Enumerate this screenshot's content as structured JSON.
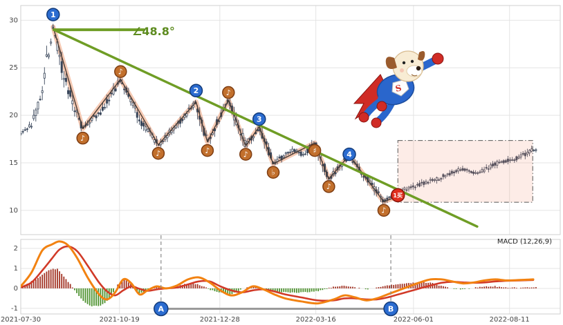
{
  "chart_data": {
    "type": "candlestick",
    "x_axis": {
      "tick_labels": [
        "2021-07-30",
        "2021-10-19",
        "2021-12-28",
        "2022-03-16",
        "2022-06-01",
        "2022-08-11"
      ],
      "tick_t": [
        0.0,
        0.183,
        0.369,
        0.547,
        0.728,
        0.906
      ]
    },
    "price_panel": {
      "ylim": [
        7.45,
        31.55
      ],
      "yticks": [
        10,
        15,
        20,
        25,
        30
      ]
    },
    "t_end": 0.955,
    "candle_count": 240,
    "candle_color_up": "#ffffff",
    "candle_color_down": "#39465a",
    "candle_stroke": "#39465a",
    "base_pivots": [
      [
        0.0,
        18.2
      ],
      [
        0.018,
        18.8
      ],
      [
        0.035,
        21.5
      ],
      [
        0.06,
        29.3
      ],
      [
        0.08,
        24.0
      ],
      [
        0.115,
        18.6
      ],
      [
        0.15,
        20.5
      ],
      [
        0.185,
        23.8
      ],
      [
        0.22,
        19.5
      ],
      [
        0.255,
        16.9
      ],
      [
        0.29,
        19.0
      ],
      [
        0.325,
        21.4
      ],
      [
        0.346,
        17.2
      ],
      [
        0.385,
        21.6
      ],
      [
        0.417,
        16.8
      ],
      [
        0.442,
        18.8
      ],
      [
        0.468,
        14.9
      ],
      [
        0.505,
        16.4
      ],
      [
        0.525,
        15.8
      ],
      [
        0.545,
        17.1
      ],
      [
        0.571,
        13.3
      ],
      [
        0.609,
        15.8
      ],
      [
        0.64,
        13.5
      ],
      [
        0.673,
        10.9
      ],
      [
        0.699,
        12.0
      ],
      [
        0.735,
        12.6
      ],
      [
        0.775,
        13.4
      ],
      [
        0.815,
        14.3
      ],
      [
        0.848,
        13.9
      ],
      [
        0.885,
        15.0
      ],
      [
        0.92,
        15.5
      ],
      [
        0.955,
        16.5
      ]
    ],
    "zigzag": [
      [
        0.06,
        29.3
      ],
      [
        0.115,
        18.6
      ],
      [
        0.185,
        23.8
      ],
      [
        0.255,
        16.9
      ],
      [
        0.325,
        21.4
      ],
      [
        0.346,
        17.2
      ],
      [
        0.385,
        21.6
      ],
      [
        0.417,
        16.8
      ],
      [
        0.442,
        18.8
      ],
      [
        0.468,
        14.9
      ],
      [
        0.545,
        17.1
      ],
      [
        0.571,
        13.3
      ],
      [
        0.609,
        15.8
      ],
      [
        0.673,
        10.9
      ],
      [
        0.699,
        11.5
      ]
    ],
    "zigzag_band_color": "#f4c3ab",
    "zigzag_line_color": "#4a3b32",
    "trendline": {
      "x1": 0.0615,
      "y1": 29.0,
      "x2": 0.846,
      "y2": 8.3,
      "horizontal_end_t": 0.228,
      "color": "#6f9d25",
      "angle_label": "∠48.8°"
    },
    "highlight_box": {
      "t1": 0.699,
      "t2": 0.949,
      "p_top": 17.35,
      "p_bottom": 10.85,
      "fill": "rgba(246,150,120,0.18)",
      "border": "#555555"
    },
    "markers": {
      "numbered": [
        {
          "label": "1",
          "t": 0.06,
          "p": 30.6
        },
        {
          "label": "2",
          "t": 0.325,
          "p": 22.6
        },
        {
          "label": "3",
          "t": 0.442,
          "p": 19.6
        },
        {
          "label": "4",
          "t": 0.609,
          "p": 15.9
        }
      ],
      "numbered_fill": "#2b6cd0",
      "numbered_stroke": "#123a78",
      "music": [
        {
          "glyph": "♪",
          "t": 0.115,
          "p": 17.6
        },
        {
          "glyph": "♪",
          "t": 0.185,
          "p": 24.6
        },
        {
          "glyph": "♪",
          "t": 0.255,
          "p": 16.0
        },
        {
          "glyph": "♪",
          "t": 0.346,
          "p": 16.3
        },
        {
          "glyph": "♪",
          "t": 0.385,
          "p": 22.4
        },
        {
          "glyph": "♪",
          "t": 0.417,
          "p": 15.9
        },
        {
          "glyph": "♭",
          "t": 0.468,
          "p": 14.0
        },
        {
          "glyph": "♯",
          "t": 0.545,
          "p": 16.3
        },
        {
          "glyph": "♪",
          "t": 0.571,
          "p": 12.5
        },
        {
          "glyph": "♪",
          "t": 0.673,
          "p": 10.0
        }
      ],
      "music_fill": "#c2702d",
      "music_stroke": "#7e3d12",
      "buy": {
        "label": "1买",
        "t": 0.699,
        "p": 11.6,
        "fill": "#e02f1e",
        "stroke": "#8a150b"
      }
    },
    "macd": {
      "label": "MACD (12,26,9)",
      "ylim": [
        -1.28,
        2.45
      ],
      "yticks": [
        -1,
        0,
        1,
        2
      ],
      "colors": {
        "dif": "#f28211",
        "dea": "#d13a28",
        "hist_pos": "#a23324",
        "hist_neg": "#4e9230"
      },
      "dif": [
        [
          0.0,
          0.1
        ],
        [
          0.02,
          0.8
        ],
        [
          0.04,
          1.9
        ],
        [
          0.058,
          2.2
        ],
        [
          0.072,
          2.35
        ],
        [
          0.088,
          2.15
        ],
        [
          0.105,
          1.5
        ],
        [
          0.125,
          0.5
        ],
        [
          0.145,
          -0.3
        ],
        [
          0.16,
          -0.55
        ],
        [
          0.175,
          -0.2
        ],
        [
          0.19,
          0.45
        ],
        [
          0.205,
          0.25
        ],
        [
          0.22,
          -0.3
        ],
        [
          0.235,
          -0.1
        ],
        [
          0.252,
          0.1
        ],
        [
          0.27,
          0.0
        ],
        [
          0.29,
          0.15
        ],
        [
          0.31,
          0.45
        ],
        [
          0.33,
          0.55
        ],
        [
          0.35,
          0.3
        ],
        [
          0.37,
          -0.1
        ],
        [
          0.39,
          -0.35
        ],
        [
          0.41,
          -0.2
        ],
        [
          0.43,
          0.1
        ],
        [
          0.45,
          -0.05
        ],
        [
          0.47,
          -0.3
        ],
        [
          0.49,
          -0.5
        ],
        [
          0.52,
          -0.65
        ],
        [
          0.55,
          -0.75
        ],
        [
          0.58,
          -0.55
        ],
        [
          0.6,
          -0.35
        ],
        [
          0.62,
          -0.45
        ],
        [
          0.64,
          -0.6
        ],
        [
          0.66,
          -0.5
        ],
        [
          0.68,
          -0.3
        ],
        [
          0.7,
          -0.1
        ],
        [
          0.72,
          0.1
        ],
        [
          0.74,
          0.3
        ],
        [
          0.76,
          0.45
        ],
        [
          0.78,
          0.45
        ],
        [
          0.8,
          0.35
        ],
        [
          0.82,
          0.25
        ],
        [
          0.84,
          0.3
        ],
        [
          0.86,
          0.4
        ],
        [
          0.88,
          0.45
        ],
        [
          0.9,
          0.4
        ],
        [
          0.925,
          0.42
        ],
        [
          0.95,
          0.45
        ]
      ],
      "dea": [
        [
          0.0,
          0.05
        ],
        [
          0.02,
          0.3
        ],
        [
          0.04,
          0.9
        ],
        [
          0.058,
          1.5
        ],
        [
          0.072,
          1.95
        ],
        [
          0.088,
          2.1
        ],
        [
          0.105,
          1.85
        ],
        [
          0.125,
          1.1
        ],
        [
          0.145,
          0.3
        ],
        [
          0.16,
          -0.15
        ],
        [
          0.175,
          -0.35
        ],
        [
          0.19,
          -0.1
        ],
        [
          0.205,
          0.1
        ],
        [
          0.22,
          -0.02
        ],
        [
          0.235,
          -0.12
        ],
        [
          0.252,
          -0.05
        ],
        [
          0.27,
          0.0
        ],
        [
          0.29,
          0.05
        ],
        [
          0.31,
          0.2
        ],
        [
          0.33,
          0.35
        ],
        [
          0.35,
          0.35
        ],
        [
          0.37,
          0.1
        ],
        [
          0.39,
          -0.1
        ],
        [
          0.41,
          -0.2
        ],
        [
          0.43,
          -0.1
        ],
        [
          0.45,
          -0.05
        ],
        [
          0.47,
          -0.15
        ],
        [
          0.49,
          -0.3
        ],
        [
          0.52,
          -0.45
        ],
        [
          0.55,
          -0.6
        ],
        [
          0.58,
          -0.6
        ],
        [
          0.6,
          -0.5
        ],
        [
          0.62,
          -0.5
        ],
        [
          0.64,
          -0.55
        ],
        [
          0.66,
          -0.55
        ],
        [
          0.68,
          -0.45
        ],
        [
          0.7,
          -0.3
        ],
        [
          0.72,
          -0.15
        ],
        [
          0.74,
          0.0
        ],
        [
          0.76,
          0.15
        ],
        [
          0.78,
          0.28
        ],
        [
          0.8,
          0.33
        ],
        [
          0.82,
          0.3
        ],
        [
          0.84,
          0.28
        ],
        [
          0.86,
          0.3
        ],
        [
          0.88,
          0.35
        ],
        [
          0.9,
          0.38
        ],
        [
          0.925,
          0.4
        ],
        [
          0.95,
          0.42
        ]
      ],
      "hist": [
        [
          0.0,
          0.05
        ],
        [
          0.03,
          0.5
        ],
        [
          0.05,
          0.9
        ],
        [
          0.068,
          1.0
        ],
        [
          0.085,
          0.45
        ],
        [
          0.1,
          -0.1
        ],
        [
          0.115,
          -0.6
        ],
        [
          0.13,
          -0.9
        ],
        [
          0.15,
          -0.85
        ],
        [
          0.165,
          -0.5
        ],
        [
          0.18,
          0.2
        ],
        [
          0.192,
          0.45
        ],
        [
          0.205,
          0.2
        ],
        [
          0.218,
          -0.25
        ],
        [
          0.232,
          -0.15
        ],
        [
          0.25,
          0.1
        ],
        [
          0.27,
          0.0
        ],
        [
          0.29,
          0.1
        ],
        [
          0.31,
          0.25
        ],
        [
          0.33,
          0.2
        ],
        [
          0.35,
          -0.05
        ],
        [
          0.37,
          -0.2
        ],
        [
          0.39,
          -0.3
        ],
        [
          0.41,
          -0.05
        ],
        [
          0.43,
          0.15
        ],
        [
          0.45,
          0.0
        ],
        [
          0.47,
          -0.15
        ],
        [
          0.495,
          -0.2
        ],
        [
          0.52,
          -0.2
        ],
        [
          0.55,
          -0.15
        ],
        [
          0.575,
          0.05
        ],
        [
          0.6,
          0.15
        ],
        [
          0.62,
          0.05
        ],
        [
          0.64,
          -0.05
        ],
        [
          0.66,
          0.05
        ],
        [
          0.68,
          0.15
        ],
        [
          0.7,
          0.2
        ],
        [
          0.72,
          0.25
        ],
        [
          0.74,
          0.3
        ],
        [
          0.76,
          0.28
        ],
        [
          0.78,
          0.12
        ],
        [
          0.8,
          0.0
        ],
        [
          0.82,
          -0.05
        ],
        [
          0.84,
          0.03
        ],
        [
          0.86,
          0.1
        ],
        [
          0.88,
          0.1
        ],
        [
          0.9,
          0.03
        ],
        [
          0.925,
          0.03
        ],
        [
          0.95,
          0.04
        ]
      ],
      "ab": {
        "a_label": "A",
        "b_label": "B",
        "a_t": 0.26,
        "b_t": 0.686,
        "v": -1.02,
        "line_color": "#9b9b9b",
        "circle_fill": "#2b6cd0",
        "circle_stroke": "#123a78"
      }
    }
  },
  "mascot": {
    "name": "superdog-mascot"
  }
}
